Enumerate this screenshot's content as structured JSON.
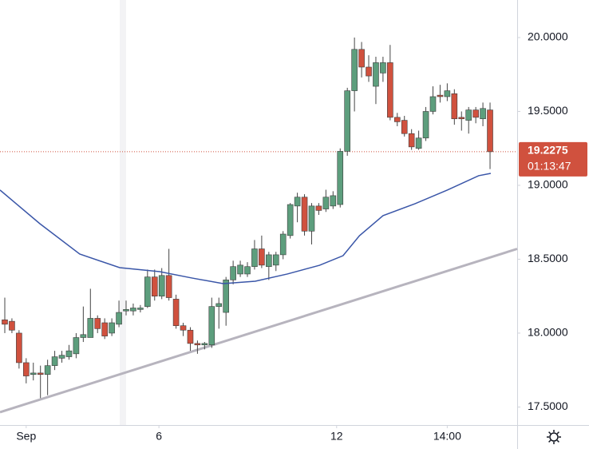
{
  "chart_data": {
    "type": "candlestick",
    "open": [
      18.09,
      18.08,
      18.0,
      17.8,
      17.72,
      17.73,
      17.72,
      17.78,
      17.83,
      17.84,
      17.86,
      17.97,
      17.97,
      18.1,
      18.07,
      18.0,
      18.06,
      18.15,
      18.15,
      18.16,
      18.18,
      18.38,
      18.25,
      18.39,
      18.23,
      18.05,
      18.02,
      17.93,
      17.92,
      17.92,
      18.18,
      18.14,
      18.36,
      18.4,
      18.4,
      18.45,
      18.57,
      18.45,
      18.46,
      18.53,
      18.66,
      18.86,
      18.92,
      18.69,
      18.86,
      18.84,
      18.86,
      18.87,
      19.23,
      19.64,
      19.92,
      19.8,
      19.67,
      19.76,
      19.83,
      19.46,
      19.44,
      19.35,
      19.25,
      19.32,
      19.5,
      19.61,
      19.6,
      19.62,
      19.46,
      19.44,
      19.51,
      19.45,
      19.51
    ],
    "high": [
      18.24,
      18.1,
      18.02,
      17.83,
      17.8,
      17.78,
      17.82,
      17.88,
      17.88,
      17.92,
      18.0,
      18.18,
      18.3,
      18.12,
      18.1,
      18.1,
      18.22,
      18.22,
      18.2,
      18.19,
      18.43,
      18.43,
      18.44,
      18.57,
      18.26,
      18.07,
      18.04,
      17.95,
      17.94,
      18.24,
      18.24,
      18.38,
      18.49,
      18.49,
      18.48,
      18.63,
      18.66,
      18.55,
      18.55,
      18.69,
      18.88,
      18.95,
      18.94,
      18.88,
      18.88,
      18.97,
      18.96,
      19.25,
      19.66,
      20.0,
      19.97,
      19.88,
      19.87,
      19.87,
      19.95,
      19.49,
      19.47,
      19.38,
      19.37,
      19.53,
      19.67,
      19.68,
      19.69,
      19.65,
      19.5,
      19.53,
      19.53,
      19.56,
      19.56
    ],
    "low": [
      18.0,
      18.0,
      17.76,
      17.66,
      17.68,
      17.56,
      17.58,
      17.75,
      17.8,
      17.82,
      17.83,
      17.94,
      17.97,
      18.0,
      17.96,
      17.98,
      18.04,
      18.12,
      18.12,
      18.14,
      18.17,
      18.22,
      18.23,
      18.22,
      18.03,
      17.98,
      17.88,
      17.86,
      17.89,
      17.9,
      18.03,
      18.05,
      18.33,
      18.38,
      18.38,
      18.43,
      18.44,
      18.36,
      18.42,
      18.5,
      18.64,
      18.75,
      18.66,
      18.6,
      18.8,
      18.82,
      18.84,
      18.85,
      19.2,
      19.5,
      19.73,
      19.7,
      19.55,
      19.7,
      19.44,
      19.4,
      19.33,
      19.24,
      19.24,
      19.3,
      19.48,
      19.56,
      19.57,
      19.41,
      19.37,
      19.35,
      19.42,
      19.4,
      19.11
    ],
    "close": [
      18.06,
      18.02,
      17.8,
      17.71,
      17.73,
      17.72,
      17.78,
      17.84,
      17.85,
      17.88,
      17.97,
      17.99,
      18.1,
      18.03,
      17.98,
      18.07,
      18.14,
      18.16,
      18.17,
      18.17,
      18.38,
      18.25,
      18.39,
      18.24,
      18.05,
      18.02,
      17.93,
      17.92,
      17.93,
      18.18,
      18.2,
      18.36,
      18.45,
      18.46,
      18.45,
      18.57,
      18.46,
      18.53,
      18.53,
      18.67,
      18.87,
      18.92,
      18.69,
      18.86,
      18.83,
      18.92,
      18.93,
      19.23,
      19.64,
      19.92,
      19.8,
      19.74,
      19.83,
      19.83,
      19.46,
      19.43,
      19.35,
      19.26,
      19.32,
      19.5,
      19.6,
      19.6,
      19.64,
      19.45,
      19.45,
      19.51,
      19.46,
      19.52,
      19.2275
    ],
    "up_color": "#5d9e7d",
    "down_color": "#d0513e",
    "moving_average": {
      "color": "#3a56a8",
      "x": [
        -0.67,
        4.9,
        10.5,
        16.1,
        21.7,
        26.2,
        30.6,
        35.1,
        39.6,
        44.1,
        47.4,
        49.7,
        53.0,
        57.5,
        62.0,
        66.4,
        68.1
      ],
      "values": [
        18.968,
        18.741,
        18.535,
        18.443,
        18.416,
        18.373,
        18.335,
        18.351,
        18.4,
        18.459,
        18.524,
        18.659,
        18.795,
        18.876,
        18.968,
        19.065,
        19.081
      ]
    },
    "trendline": {
      "color": "#b7b4be",
      "x": [
        -0.67,
        71.8
      ],
      "values": [
        17.465,
        18.57
      ]
    },
    "last_price": 19.2275,
    "countdown": "01:13:47",
    "last_price_color": "#d0513e",
    "xlim": [
      -0.67,
      71.8
    ],
    "xticks": [
      {
        "value": 3,
        "label": "Sep"
      },
      {
        "value": 21.6,
        "label": "6"
      },
      {
        "value": 46.5,
        "label": "12"
      },
      {
        "value": 62,
        "label": "14:00"
      }
    ],
    "ylim": [
      17.378,
      20.254
    ],
    "yticks": [
      {
        "value": 17.5,
        "label": "17.5000"
      },
      {
        "value": 18,
        "label": "18.0000"
      },
      {
        "value": 18.5,
        "label": "18.5000"
      },
      {
        "value": 19,
        "label": "19.0000"
      },
      {
        "value": 19.5,
        "label": "19.5000"
      },
      {
        "value": 20,
        "label": "20.0000"
      }
    ]
  }
}
